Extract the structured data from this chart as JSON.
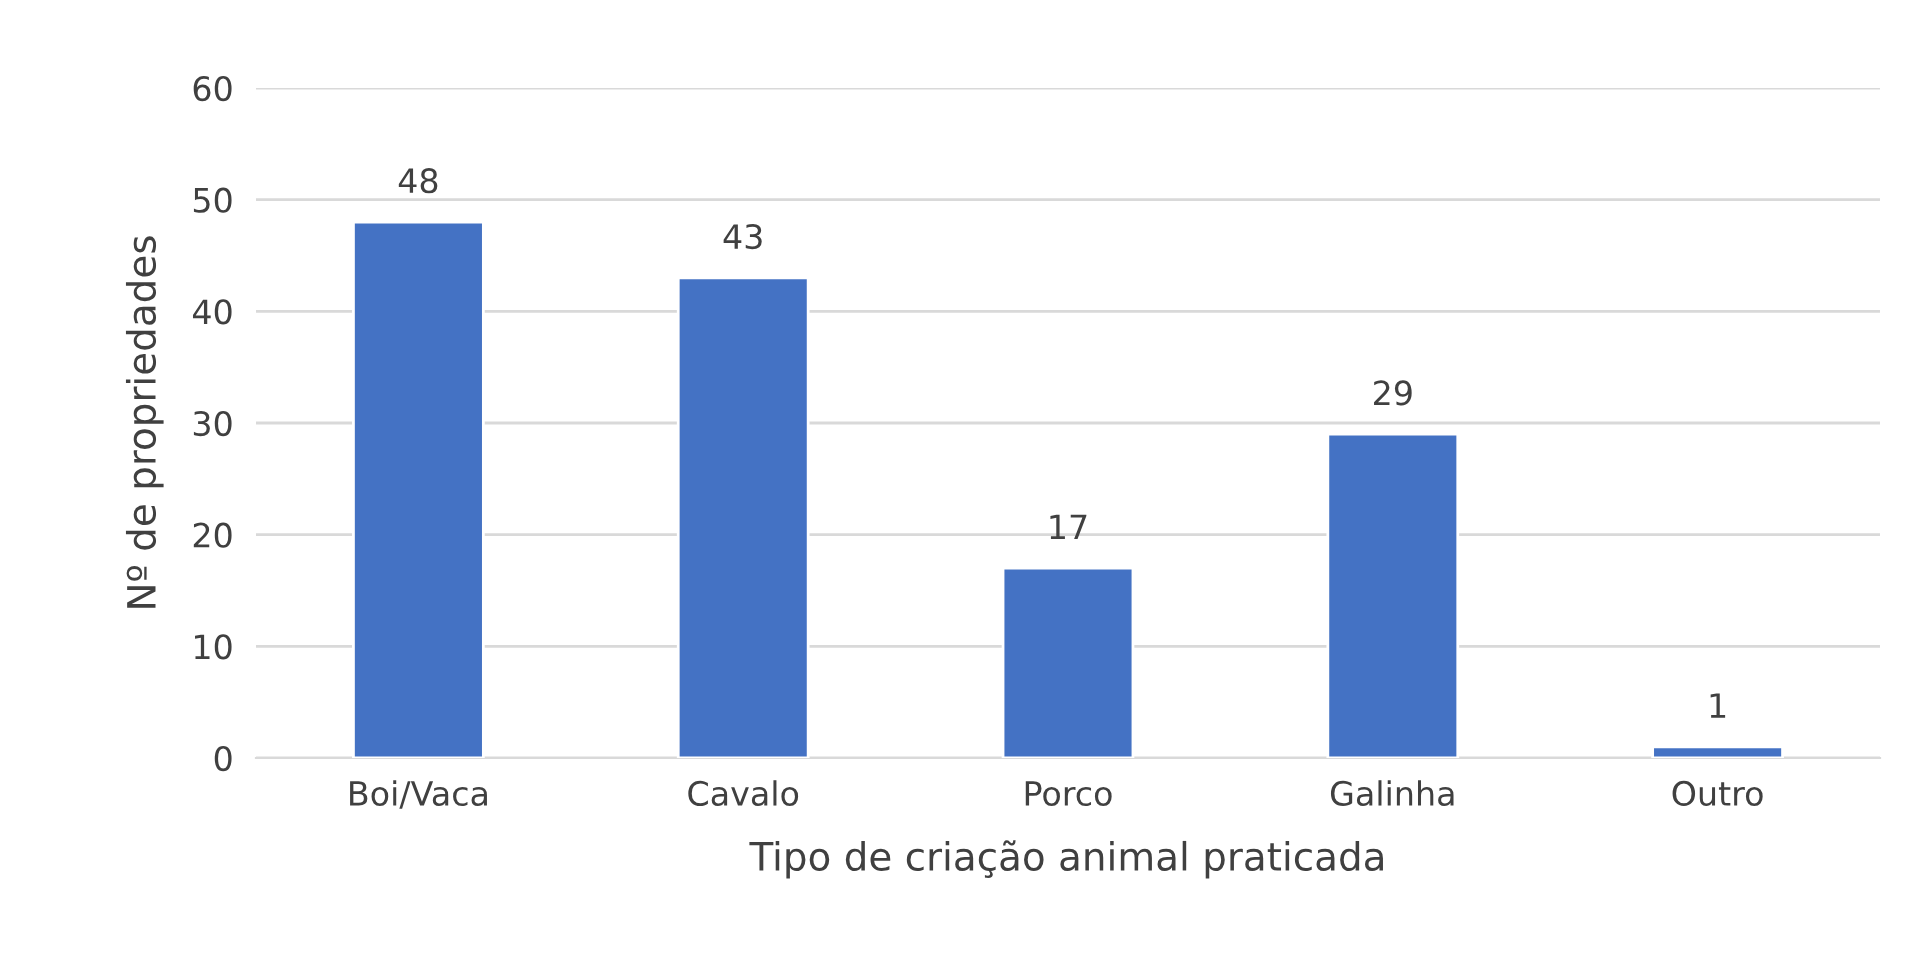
{
  "chart_data": {
    "type": "bar",
    "xlabel": "Tipo de criação animal praticada",
    "ylabel": "Nº de propriedades",
    "categories": [
      "Boi/Vaca",
      "Cavalo",
      "Porco",
      "Galinha",
      "Outro"
    ],
    "values": [
      48,
      43,
      17,
      29,
      1
    ],
    "color": "#4472c4",
    "ylim": [
      0,
      60
    ],
    "yticks": [
      0,
      10,
      20,
      30,
      40,
      50,
      60
    ],
    "grid": "y",
    "data_labels": true
  }
}
